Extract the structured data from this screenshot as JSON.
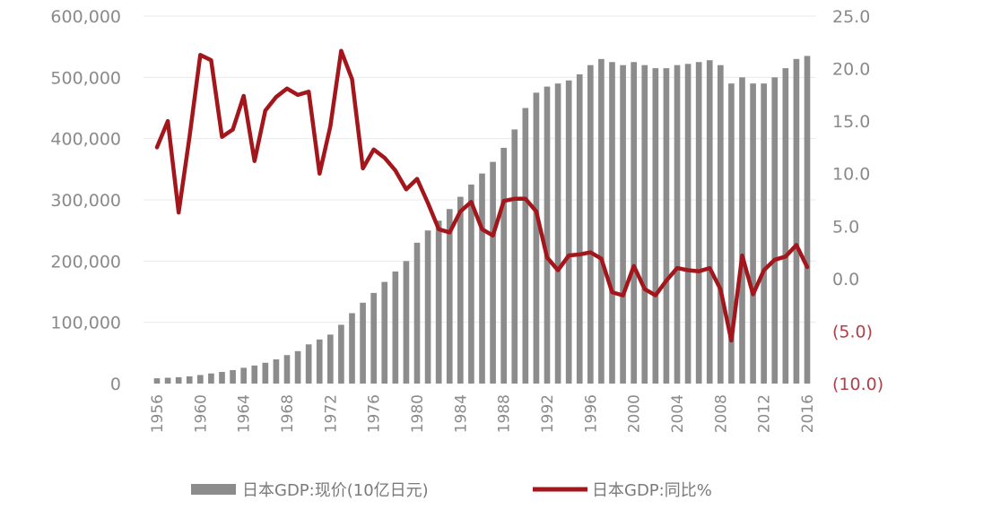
{
  "chart_data": {
    "type": "bar",
    "x": [
      1956,
      1957,
      1958,
      1959,
      1960,
      1961,
      1962,
      1963,
      1964,
      1965,
      1966,
      1967,
      1968,
      1969,
      1970,
      1971,
      1972,
      1973,
      1974,
      1975,
      1976,
      1977,
      1978,
      1979,
      1980,
      1981,
      1982,
      1983,
      1984,
      1985,
      1986,
      1987,
      1988,
      1989,
      1990,
      1991,
      1992,
      1993,
      1994,
      1995,
      1996,
      1997,
      1998,
      1999,
      2000,
      2001,
      2002,
      2003,
      2004,
      2005,
      2006,
      2007,
      2008,
      2009,
      2010,
      2011,
      2012,
      2013,
      2014,
      2015,
      2016
    ],
    "x_tick_labels": [
      "1956",
      "1960",
      "1964",
      "1968",
      "1972",
      "1976",
      "1980",
      "1984",
      "1988",
      "1992",
      "1996",
      "2000",
      "2004",
      "2008",
      "2012",
      "2016"
    ],
    "series": [
      {
        "name": "日本GDP:现价(10亿日元)",
        "type": "bar",
        "axis": "left",
        "color": "#8c8c8c",
        "values": [
          8600,
          9500,
          10400,
          11800,
          14000,
          16500,
          19000,
          22000,
          25800,
          29500,
          34000,
          39500,
          46500,
          53000,
          64000,
          72000,
          80000,
          96000,
          115000,
          132000,
          148000,
          166000,
          183000,
          200000,
          230000,
          250000,
          266000,
          285000,
          305000,
          325000,
          343000,
          362000,
          385000,
          415000,
          450000,
          475000,
          485000,
          490000,
          495000,
          505000,
          520000,
          530000,
          525000,
          520000,
          525000,
          520000,
          515000,
          515000,
          520000,
          522000,
          525000,
          528000,
          520000,
          490000,
          500000,
          490000,
          490000,
          500000,
          515000,
          530000,
          535000
        ]
      },
      {
        "name": "日本GDP:同比%",
        "type": "line",
        "axis": "right",
        "color": "#a3161c",
        "values": [
          12.5,
          15.0,
          6.3,
          13.5,
          21.3,
          20.8,
          13.5,
          14.2,
          17.4,
          11.2,
          16.0,
          17.3,
          18.1,
          17.5,
          17.8,
          10.0,
          14.5,
          21.7,
          19.0,
          10.5,
          12.3,
          11.5,
          10.3,
          8.5,
          9.5,
          7.2,
          4.7,
          4.4,
          6.4,
          7.3,
          4.7,
          4.1,
          7.4,
          7.6,
          7.6,
          6.4,
          2.0,
          0.8,
          2.2,
          2.3,
          2.5,
          1.9,
          -1.3,
          -1.6,
          1.2,
          -1.0,
          -1.6,
          -0.2,
          1.0,
          0.8,
          0.7,
          1.0,
          -1.0,
          -5.9,
          2.2,
          -1.5,
          0.8,
          1.8,
          2.1,
          3.2,
          1.1
        ]
      }
    ],
    "left_axis": {
      "ylim": [
        0,
        600000
      ],
      "tick_labels": [
        "600,000",
        "500,000",
        "400,000",
        "300,000",
        "200,000",
        "100,000",
        "0"
      ]
    },
    "right_axis": {
      "ylim": [
        -10,
        25
      ],
      "tick_labels": [
        "25.0",
        "20.0",
        "15.0",
        "10.0",
        "5.0",
        "0.0",
        "(5.0)",
        "(10.0)"
      ],
      "tick_colors": [
        "#8a8a8a",
        "#8a8a8a",
        "#8a8a8a",
        "#8a8a8a",
        "#8a8a8a",
        "#8a8a8a",
        "#b0414a",
        "#b0414a"
      ]
    },
    "grid": true,
    "legend_position": "bottom",
    "title": "",
    "xlabel": "",
    "ylabel": ""
  }
}
